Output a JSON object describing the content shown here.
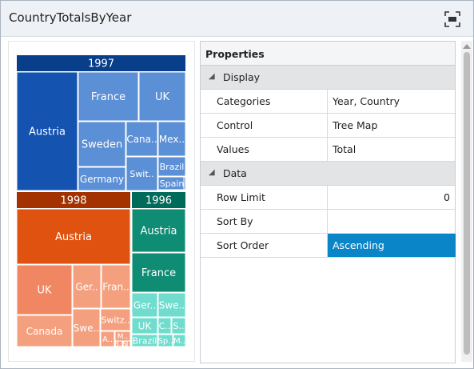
{
  "window": {
    "title": "CountryTotalsByYear"
  },
  "icons": {
    "focus": "focus-mode-icon",
    "collapse": "collapse-triangle-icon",
    "scroll_up": "scroll-up-arrow-icon"
  },
  "treemap": {
    "groups": [
      {
        "year": "1997",
        "header_color": "#083e8a",
        "cells": [
          {
            "label": "Austria",
            "color": "#1553b0"
          },
          {
            "label": "France",
            "color": "#5b8fd6"
          },
          {
            "label": "UK",
            "color": "#5b8fd6"
          },
          {
            "label": "Sweden",
            "color": "#5b8fd6"
          },
          {
            "label": "Cana..",
            "color": "#5b8fd6"
          },
          {
            "label": "Mex..",
            "color": "#5b8fd6"
          },
          {
            "label": "Germany",
            "color": "#5b8fd6"
          },
          {
            "label": "Swit..",
            "color": "#5b8fd6"
          },
          {
            "label": "Brazil",
            "color": "#5b8fd6"
          },
          {
            "label": "Spain",
            "color": "#5b8fd6"
          },
          {
            "label": "",
            "color": "#5b8fd6"
          }
        ]
      },
      {
        "year": "1998",
        "header_color": "#a33200",
        "cells": [
          {
            "label": "Austria",
            "color": "#e0520f"
          },
          {
            "label": "UK",
            "color": "#f18762"
          },
          {
            "label": "Ger..",
            "color": "#f4a07f"
          },
          {
            "label": "Fran..",
            "color": "#f4a07f"
          },
          {
            "label": "Canada",
            "color": "#f4a07f"
          },
          {
            "label": "Swe..",
            "color": "#f4a07f"
          },
          {
            "label": "Switz..",
            "color": "#f4a07f"
          },
          {
            "label": "A..",
            "color": "#f4a07f"
          },
          {
            "label": "M..",
            "color": "#f4a07f"
          },
          {
            "label": "B..",
            "color": "#f4a07f"
          },
          {
            "label": "S..",
            "color": "#f4a07f"
          },
          {
            "label": "",
            "color": "#f4a07f"
          }
        ]
      },
      {
        "year": "1996",
        "header_color": "#006b5a",
        "cells": [
          {
            "label": "Austria",
            "color": "#0e8c74"
          },
          {
            "label": "France",
            "color": "#0e8c74"
          },
          {
            "label": "Ger..",
            "color": "#6fdccd"
          },
          {
            "label": "Swe..",
            "color": "#6fdccd"
          },
          {
            "label": "UK",
            "color": "#6fdccd"
          },
          {
            "label": "C..",
            "color": "#6fdccd"
          },
          {
            "label": "S..",
            "color": "#6fdccd"
          },
          {
            "label": "Brazil",
            "color": "#6fdccd"
          },
          {
            "label": "Sp..",
            "color": "#6fdccd"
          },
          {
            "label": "M..",
            "color": "#6fdccd"
          }
        ]
      }
    ]
  },
  "properties": {
    "header": "Properties",
    "display_group": "Display",
    "rows_display": [
      {
        "name": "Categories",
        "value": "Year, Country"
      },
      {
        "name": "Control",
        "value": "Tree Map"
      },
      {
        "name": "Values",
        "value": "Total"
      }
    ],
    "data_group": "Data",
    "rows_data": [
      {
        "name": "Row Limit",
        "value": "0"
      },
      {
        "name": "Sort By",
        "value": ""
      },
      {
        "name": "Sort Order",
        "value": "Ascending"
      }
    ]
  },
  "colors": {
    "selected": "#0a85c8"
  }
}
